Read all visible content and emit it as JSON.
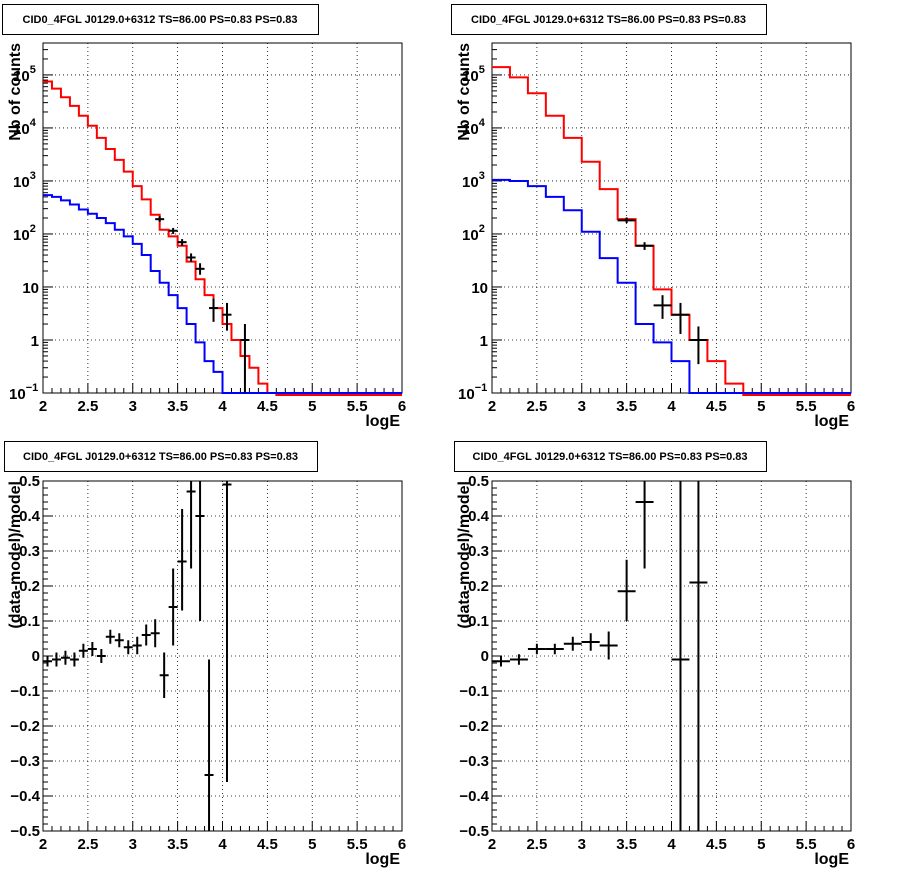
{
  "chart_data": [
    {
      "type": "line",
      "title": "CID0_4FGL J0129.0+6312 TS=86.00 PS=0.83 PS=0.83",
      "xlabel": "logE",
      "ylabel": "Nb of counts",
      "xlim": [
        2,
        6
      ],
      "ylim": [
        0.1,
        400000
      ],
      "yscale": "log",
      "grid": true,
      "x_ticks": [
        "2",
        "2.5",
        "3",
        "3.5",
        "4",
        "4.5",
        "5",
        "5.5",
        "6"
      ],
      "y_ticks": [
        {
          "v": 0.1,
          "b": "10",
          "e": "−1"
        },
        {
          "v": 1,
          "b": "1",
          "e": ""
        },
        {
          "v": 10,
          "b": "10",
          "e": ""
        },
        {
          "v": 100,
          "b": "10",
          "e": "2"
        },
        {
          "v": 1000,
          "b": "10",
          "e": "3"
        },
        {
          "v": 10000,
          "b": "10",
          "e": "4"
        },
        {
          "v": 100000,
          "b": "10",
          "e": "5"
        }
      ],
      "bin_edges": [
        2.0,
        2.1,
        2.2,
        2.3,
        2.4,
        2.5,
        2.6,
        2.7,
        2.8,
        2.9,
        3.0,
        3.1,
        3.2,
        3.3,
        3.4,
        3.5,
        3.6,
        3.7,
        3.8,
        3.9,
        4.0,
        4.1,
        4.2,
        4.3,
        4.4,
        4.5,
        4.6,
        4.7,
        4.8,
        4.9,
        5.0,
        5.1,
        5.2,
        5.3,
        5.4,
        5.5,
        5.6,
        5.7,
        5.8,
        5.9,
        6.0
      ],
      "series": [
        {
          "color": "#ff0000",
          "style": "step",
          "values": [
            75000,
            55000,
            38000,
            26000,
            17000,
            11000,
            6500,
            4000,
            2500,
            1500,
            800,
            450,
            230,
            120,
            90,
            60,
            30,
            14,
            7,
            4,
            2,
            1,
            0.5,
            0.3,
            0.15,
            0.1,
            0.08,
            0.08,
            0.08,
            0.08,
            0.08,
            0.08,
            0.08,
            0.08,
            0.08,
            0.08,
            0.08,
            0.08,
            0.08,
            0.08
          ]
        },
        {
          "color": "#0000ff",
          "style": "step",
          "values": [
            540,
            500,
            430,
            360,
            290,
            240,
            200,
            160,
            120,
            90,
            65,
            40,
            20,
            12,
            7,
            4,
            2,
            0.9,
            0.4,
            0.25,
            0.1,
            0.1,
            0.1,
            0.1,
            0.1,
            0.1,
            0.1,
            0.1,
            0.1,
            0.1,
            0.1,
            0.1,
            0.1,
            0.1,
            0.1,
            0.1,
            0.1,
            0.1,
            0.1,
            0.1
          ]
        }
      ],
      "points": [
        {
          "x": 3.3,
          "y": 190,
          "ylo": 170,
          "yhi": 215,
          "xerr": 0.05
        },
        {
          "x": 3.45,
          "y": 115,
          "ylo": 100,
          "yhi": 130,
          "xerr": 0.05
        },
        {
          "x": 3.55,
          "y": 70,
          "ylo": 60,
          "yhi": 80,
          "xerr": 0.05
        },
        {
          "x": 3.65,
          "y": 36,
          "ylo": 30,
          "yhi": 43,
          "xerr": 0.05
        },
        {
          "x": 3.75,
          "y": 22,
          "ylo": 17,
          "yhi": 28,
          "xerr": 0.05
        },
        {
          "x": 3.9,
          "y": 4,
          "ylo": 2.2,
          "yhi": 6,
          "xerr": 0.05
        },
        {
          "x": 4.05,
          "y": 3,
          "ylo": 1.5,
          "yhi": 5,
          "xerr": 0.05
        },
        {
          "x": 4.25,
          "y": 1,
          "ylo": 0.1,
          "yhi": 2,
          "xerr": 0.05
        }
      ]
    },
    {
      "type": "line",
      "title": "CID0_4FGL J0129.0+6312 TS=86.00 PS=0.83 PS=0.83",
      "xlabel": "logE",
      "ylabel": "Nb of counts",
      "xlim": [
        2,
        6
      ],
      "ylim": [
        0.1,
        400000
      ],
      "yscale": "log",
      "grid": true,
      "x_ticks": [
        "2",
        "2.5",
        "3",
        "3.5",
        "4",
        "4.5",
        "5",
        "5.5",
        "6"
      ],
      "y_ticks": [
        {
          "v": 0.1,
          "b": "10",
          "e": "−1"
        },
        {
          "v": 1,
          "b": "1",
          "e": ""
        },
        {
          "v": 10,
          "b": "10",
          "e": ""
        },
        {
          "v": 100,
          "b": "10",
          "e": "2"
        },
        {
          "v": 1000,
          "b": "10",
          "e": "3"
        },
        {
          "v": 10000,
          "b": "10",
          "e": "4"
        },
        {
          "v": 100000,
          "b": "10",
          "e": "5"
        }
      ],
      "bin_edges": [
        2.0,
        2.2,
        2.4,
        2.6,
        2.8,
        3.0,
        3.2,
        3.4,
        3.6,
        3.8,
        4.0,
        4.2,
        4.4,
        4.6,
        4.8,
        5.0,
        5.2,
        5.4,
        5.6,
        5.8,
        6.0
      ],
      "series": [
        {
          "color": "#ff0000",
          "style": "step",
          "values": [
            140000,
            90000,
            45000,
            17000,
            6500,
            2300,
            700,
            190,
            60,
            9,
            3,
            1,
            0.4,
            0.15,
            0.08,
            0.08,
            0.08,
            0.08,
            0.08,
            0.08
          ]
        },
        {
          "color": "#0000ff",
          "style": "step",
          "values": [
            1050,
            1000,
            800,
            500,
            280,
            110,
            35,
            12,
            2,
            0.9,
            0.4,
            0.1,
            0.1,
            0.1,
            0.1,
            0.1,
            0.1,
            0.1,
            0.1,
            0.1
          ]
        }
      ],
      "points": [
        {
          "x": 3.5,
          "y": 180,
          "ylo": 160,
          "yhi": 205,
          "xerr": 0.1
        },
        {
          "x": 3.7,
          "y": 60,
          "ylo": 50,
          "yhi": 70,
          "xerr": 0.1
        },
        {
          "x": 3.9,
          "y": 4.5,
          "ylo": 2.5,
          "yhi": 7,
          "xerr": 0.1
        },
        {
          "x": 4.1,
          "y": 3,
          "ylo": 1.3,
          "yhi": 5,
          "xerr": 0.1
        },
        {
          "x": 4.3,
          "y": 1,
          "ylo": 0.35,
          "yhi": 1.8,
          "xerr": 0.1
        }
      ]
    },
    {
      "type": "scatter",
      "title": "CID0_4FGL J0129.0+6312 TS=86.00 PS=0.83 PS=0.83",
      "xlabel": "logE",
      "ylabel": "(data-model)/model",
      "xlim": [
        2,
        6
      ],
      "ylim": [
        -0.5,
        0.5
      ],
      "yscale": "linear",
      "grid": true,
      "x_ticks": [
        "2",
        "2.5",
        "3",
        "3.5",
        "4",
        "4.5",
        "5",
        "5.5",
        "6"
      ],
      "y_ticks": [
        "0.5",
        "0.4",
        "0.3",
        "0.2",
        "0.1",
        "0",
        "−0.1",
        "−0.2",
        "−0.3",
        "−0.4",
        "−0.5"
      ],
      "points": [
        {
          "x": 2.05,
          "y": -0.015,
          "ylo": -0.03,
          "yhi": 0.0,
          "xerr": 0.05
        },
        {
          "x": 2.15,
          "y": -0.01,
          "ylo": -0.03,
          "yhi": 0.01,
          "xerr": 0.05
        },
        {
          "x": 2.25,
          "y": -0.005,
          "ylo": -0.025,
          "yhi": 0.015,
          "xerr": 0.05
        },
        {
          "x": 2.35,
          "y": -0.01,
          "ylo": -0.03,
          "yhi": 0.01,
          "xerr": 0.05
        },
        {
          "x": 2.45,
          "y": 0.015,
          "ylo": -0.005,
          "yhi": 0.035,
          "xerr": 0.05
        },
        {
          "x": 2.55,
          "y": 0.02,
          "ylo": 0.0,
          "yhi": 0.04,
          "xerr": 0.05
        },
        {
          "x": 2.65,
          "y": 0.0,
          "ylo": -0.02,
          "yhi": 0.02,
          "xerr": 0.05
        },
        {
          "x": 2.75,
          "y": 0.055,
          "ylo": 0.035,
          "yhi": 0.075,
          "xerr": 0.05
        },
        {
          "x": 2.85,
          "y": 0.045,
          "ylo": 0.025,
          "yhi": 0.065,
          "xerr": 0.05
        },
        {
          "x": 2.95,
          "y": 0.025,
          "ylo": 0.005,
          "yhi": 0.045,
          "xerr": 0.05
        },
        {
          "x": 3.05,
          "y": 0.03,
          "ylo": 0.005,
          "yhi": 0.055,
          "xerr": 0.05
        },
        {
          "x": 3.15,
          "y": 0.06,
          "ylo": 0.03,
          "yhi": 0.09,
          "xerr": 0.05
        },
        {
          "x": 3.25,
          "y": 0.065,
          "ylo": 0.025,
          "yhi": 0.105,
          "xerr": 0.05
        },
        {
          "x": 3.35,
          "y": -0.055,
          "ylo": -0.12,
          "yhi": 0.01,
          "xerr": 0.05
        },
        {
          "x": 3.45,
          "y": 0.14,
          "ylo": 0.03,
          "yhi": 0.25,
          "xerr": 0.05
        },
        {
          "x": 3.55,
          "y": 0.27,
          "ylo": 0.13,
          "yhi": 0.42,
          "xerr": 0.05
        },
        {
          "x": 3.65,
          "y": 0.47,
          "ylo": 0.25,
          "yhi": 0.5,
          "xerr": 0.05
        },
        {
          "x": 3.75,
          "y": 0.4,
          "ylo": 0.1,
          "yhi": 0.5,
          "xerr": 0.05
        },
        {
          "x": 3.85,
          "y": -0.34,
          "ylo": -0.5,
          "yhi": -0.01,
          "xerr": 0.05
        },
        {
          "x": 4.05,
          "y": 0.49,
          "ylo": -0.36,
          "yhi": 0.5,
          "xerr": 0.05
        }
      ]
    },
    {
      "type": "scatter",
      "title": "CID0_4FGL J0129.0+6312 TS=86.00 PS=0.83 PS=0.83",
      "xlabel": "logE",
      "ylabel": "(data-model)/model",
      "xlim": [
        2,
        6
      ],
      "ylim": [
        -0.5,
        0.5
      ],
      "yscale": "linear",
      "grid": true,
      "x_ticks": [
        "2",
        "2.5",
        "3",
        "3.5",
        "4",
        "4.5",
        "5",
        "5.5",
        "6"
      ],
      "y_ticks": [
        "0.5",
        "0.4",
        "0.3",
        "0.2",
        "0.1",
        "0",
        "−0.1",
        "−0.2",
        "−0.3",
        "−0.4",
        "−0.5"
      ],
      "points": [
        {
          "x": 2.1,
          "y": -0.015,
          "ylo": -0.03,
          "yhi": 0.0,
          "xerr": 0.1
        },
        {
          "x": 2.3,
          "y": -0.01,
          "ylo": -0.025,
          "yhi": 0.005,
          "xerr": 0.1
        },
        {
          "x": 2.5,
          "y": 0.02,
          "ylo": 0.005,
          "yhi": 0.035,
          "xerr": 0.1
        },
        {
          "x": 2.7,
          "y": 0.02,
          "ylo": 0.005,
          "yhi": 0.035,
          "xerr": 0.1
        },
        {
          "x": 2.9,
          "y": 0.035,
          "ylo": 0.015,
          "yhi": 0.055,
          "xerr": 0.1
        },
        {
          "x": 3.1,
          "y": 0.04,
          "ylo": 0.015,
          "yhi": 0.065,
          "xerr": 0.1
        },
        {
          "x": 3.3,
          "y": 0.03,
          "ylo": -0.01,
          "yhi": 0.07,
          "xerr": 0.1
        },
        {
          "x": 3.5,
          "y": 0.185,
          "ylo": 0.1,
          "yhi": 0.275,
          "xerr": 0.1
        },
        {
          "x": 3.7,
          "y": 0.44,
          "ylo": 0.25,
          "yhi": 0.5,
          "xerr": 0.1
        },
        {
          "x": 4.1,
          "y": -0.01,
          "ylo": -0.5,
          "yhi": 0.5,
          "xerr": 0.1
        },
        {
          "x": 4.3,
          "y": 0.21,
          "ylo": -0.5,
          "yhi": 0.5,
          "xerr": 0.1
        }
      ]
    }
  ]
}
